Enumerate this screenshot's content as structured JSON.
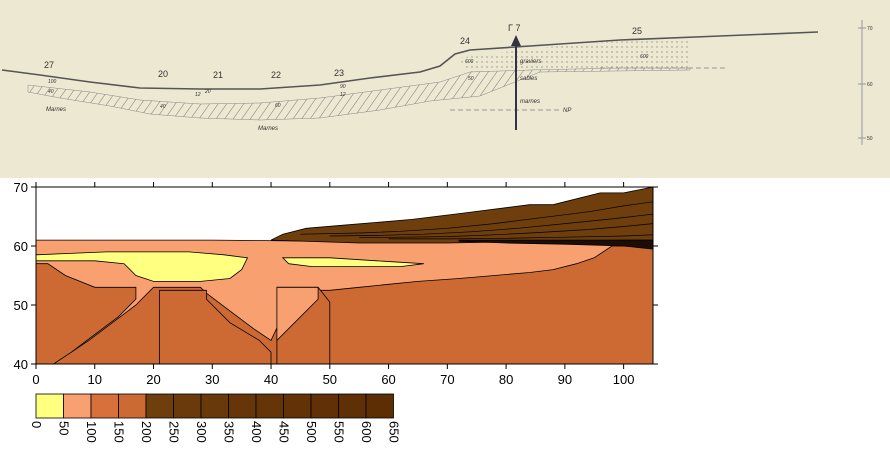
{
  "scan": {
    "profile_label": "Γ 7",
    "points": [
      {
        "id": "27",
        "label": "27",
        "depth": "100",
        "extra": "40"
      },
      {
        "id": "20",
        "label": "20",
        "depth": "",
        "extra": "40"
      },
      {
        "id": "21",
        "label": "21",
        "depth": "20",
        "extra": "12"
      },
      {
        "id": "22",
        "label": "22",
        "depth": "",
        "extra": "60"
      },
      {
        "id": "23",
        "label": "23",
        "depth": "90",
        "extra": "12"
      },
      {
        "id": "24",
        "label": "24",
        "depth": "600",
        "extra": "50"
      },
      {
        "id": "25",
        "label": "25",
        "depth": "600",
        "extra": ""
      }
    ],
    "layer_labels": {
      "graviers": "graviers",
      "sables": "sables",
      "marnes_right": "marnes",
      "np": "NP",
      "marnes_left": "Marnes",
      "marnes_center": "Marnes"
    },
    "right_scale": [
      "70",
      "60",
      "50"
    ]
  },
  "chart_data": {
    "type": "heatmap",
    "title": "",
    "xlabel": "",
    "ylabel": "",
    "xlim": [
      0,
      105
    ],
    "ylim": [
      40,
      70
    ],
    "x_ticks": [
      "0",
      "10",
      "20",
      "30",
      "40",
      "50",
      "60",
      "70",
      "80",
      "90",
      "100"
    ],
    "y_ticks": [
      "40",
      "50",
      "60",
      "70"
    ],
    "legend": {
      "levels": [
        "0",
        "50",
        "100",
        "150",
        "200",
        "250",
        "300",
        "350",
        "400",
        "450",
        "500",
        "550",
        "600",
        "650"
      ],
      "colors": [
        "#ffff80",
        "#f9a070",
        "#d8703c",
        "#cd6a34",
        "#6e3e0c",
        "#6b3a0c",
        "#683a0a",
        "#673608",
        "#653508",
        "#633206",
        "#613006",
        "#5f3005",
        "#5d2e04",
        "#5b2c04"
      ]
    },
    "regions": [
      {
        "name": "base-layer",
        "value_range": "150-200",
        "color": "#cd6a34"
      },
      {
        "name": "upper-sand",
        "value_range": "50-100",
        "color": "#f9a070"
      },
      {
        "name": "yellow-lens-left",
        "value_range": "0-50",
        "color": "#ffff80"
      },
      {
        "name": "yellow-lens-right",
        "value_range": "0-50",
        "color": "#ffff80"
      },
      {
        "name": "gravel-wedge",
        "value_range": "200-650",
        "color": "#6e3e0c"
      }
    ]
  }
}
